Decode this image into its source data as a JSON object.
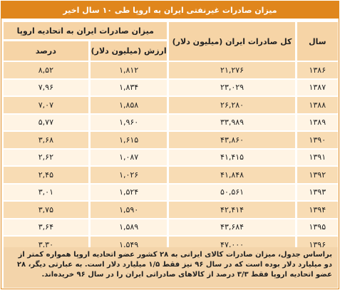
{
  "title": "میزان صادرات غیرنفتی ایران به اروپا طی ۱۰ سال اخیر",
  "headers": {
    "year": "سال",
    "total": "کل صادرات ایران (میلیون دلار)",
    "eu_group": "میزان صادرات ایران به اتحادیه اروپا",
    "eu_value": "ارزش (میلیون دلار)",
    "eu_percent": "درصد"
  },
  "rows": [
    {
      "year": "۱۳۸۶",
      "total": "۲۱,۲۷۶",
      "value": "۱,۸۱۲",
      "percent": "۸,۵۲"
    },
    {
      "year": "۱۳۸۷",
      "total": "۲۳,۰۲۹",
      "value": "۱,۸۳۴",
      "percent": "۷,۹۶"
    },
    {
      "year": "۱۳۸۸",
      "total": "۲۶,۲۸۰",
      "value": "۱,۸۵۸",
      "percent": "۷,۰۷"
    },
    {
      "year": "۱۳۸۹",
      "total": "۳۳,۹۸۹",
      "value": "۱,۹۶۰",
      "percent": "۵,۷۷"
    },
    {
      "year": "۱۳۹۰",
      "total": "۴۳,۸۶۰",
      "value": "۱,۶۱۵",
      "percent": "۳,۶۸"
    },
    {
      "year": "۱۳۹۱",
      "total": "۴۱,۴۱۵",
      "value": "۱,۰۸۷",
      "percent": "۲,۶۲"
    },
    {
      "year": "۱۳۹۲",
      "total": "۴۱,۸۴۸",
      "value": "۱,۰۲۶",
      "percent": "۲,۴۵"
    },
    {
      "year": "۱۳۹۳",
      "total": "۵۰,۵۶۱",
      "value": "۱,۵۲۴",
      "percent": "۳,۰۱"
    },
    {
      "year": "۱۳۹۴",
      "total": "۴۲,۴۱۴",
      "value": "۱,۵۹۰",
      "percent": "۳,۷۵"
    },
    {
      "year": "۱۳۹۵",
      "total": "۴۳,۶۸۴",
      "value": "۱,۵۸۹",
      "percent": "۳,۶۴"
    },
    {
      "year": "۱۳۹۶",
      "total": "۴۷,۰۰۰",
      "value": "۱,۵۴۹",
      "percent": "۳,۳۰"
    }
  ],
  "note": "براساس جدول، میزان صادرات کالای ایرانی به ۲۸ کشور عضو اتحادیه اروپا همواره کمتر از دو میلیارد دلار بوده است که در سال ۹۶ نیز فقط ۱/۵ میلیارد دلار است. به عبارتی دیگر، ۲۸ عضو اتحادیه اروپا فقط ۳/۳ درصد از کالاهای صادراتی ایران را در سال ۹۶ خریده‌اند.",
  "colors": {
    "accent": "#e0861c",
    "header_bg": "#f6d4a6",
    "row_dark": "#f8dcb4",
    "row_light": "#fff4e4",
    "note_bg": "#f3d4aa"
  }
}
